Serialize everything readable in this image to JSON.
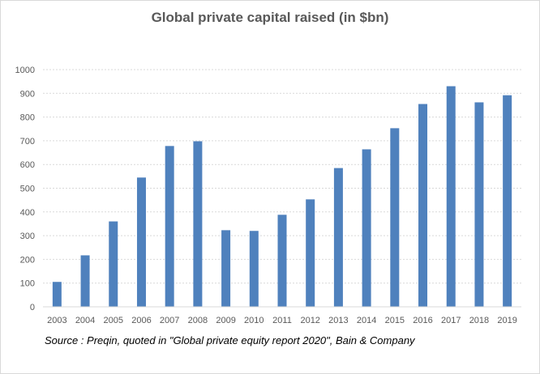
{
  "chart_data": {
    "type": "bar",
    "title": "Global private capital raised (in $bn)",
    "xlabel": "",
    "ylabel": "",
    "categories": [
      "2003",
      "2004",
      "2005",
      "2006",
      "2007",
      "2008",
      "2009",
      "2010",
      "2011",
      "2012",
      "2013",
      "2014",
      "2015",
      "2016",
      "2017",
      "2018",
      "2019"
    ],
    "values": [
      105,
      217,
      360,
      545,
      678,
      698,
      323,
      320,
      388,
      453,
      585,
      664,
      753,
      855,
      930,
      862,
      892
    ],
    "ylim": [
      0,
      1000
    ],
    "yticks": [
      "0",
      "100",
      "200",
      "300",
      "400",
      "500",
      "600",
      "700",
      "800",
      "900",
      "1000"
    ],
    "grid": true,
    "legend": "none",
    "bar_color": "#4f81bd",
    "grid_color": "#d9d9d9",
    "source": "Source : Preqin, quoted in \"Global private equity report 2020\",  Bain & Company"
  }
}
